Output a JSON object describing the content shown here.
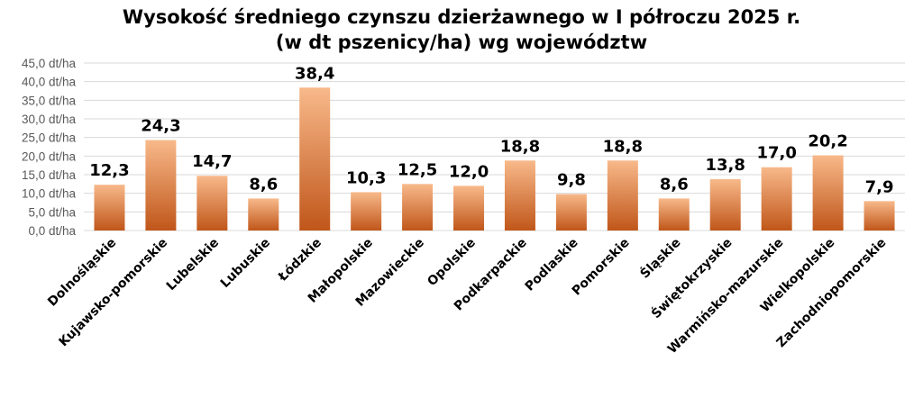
{
  "chart_data": {
    "type": "bar",
    "title": "Wysokość średniego czynszu dzierżawnego w I półroczu 2025 r.",
    "subtitle": "(w dt pszenicy/ha) wg województw",
    "categories": [
      "Dolnośląskie",
      "Kujawsko-pomorskie",
      "Lubelskie",
      "Lubuskie",
      "Łódzkie",
      "Małopolskie",
      "Mazowieckie",
      "Opolskie",
      "Podkarpackie",
      "Podlaskie",
      "Pomorskie",
      "Śląskie",
      "Świętokrzyskie",
      "Warmińsko-mazurskie",
      "Wielkopolskie",
      "Zachodniopomorskie"
    ],
    "values": [
      12.3,
      24.3,
      14.7,
      8.6,
      38.4,
      10.3,
      12.5,
      12.0,
      18.8,
      9.8,
      18.8,
      8.6,
      13.8,
      17.0,
      20.2,
      7.9
    ],
    "data_labels": [
      "12,3",
      "24,3",
      "14,7",
      "8,6",
      "38,4",
      "10,3",
      "12,5",
      "12,0",
      "18,8",
      "9,8",
      "18,8",
      "8,6",
      "13,8",
      "17,0",
      "20,2",
      "7,9"
    ],
    "y_ticks": [
      "0,0 dt/ha",
      "5,0 dt/ha",
      "10,0 dt/ha",
      "15,0 dt/ha",
      "20,0 dt/ha",
      "25,0 dt/ha",
      "30,0 dt/ha",
      "35,0 dt/ha",
      "40,0 dt/ha",
      "45,0 dt/ha"
    ],
    "ylim": [
      0,
      45
    ],
    "y_step": 5,
    "xlabel": "",
    "ylabel": "",
    "grid": true,
    "legend": "none",
    "colors": {
      "bar_top": "#f8b98a",
      "bar_bottom": "#c0561a",
      "grid": "#d9d9d9"
    }
  }
}
